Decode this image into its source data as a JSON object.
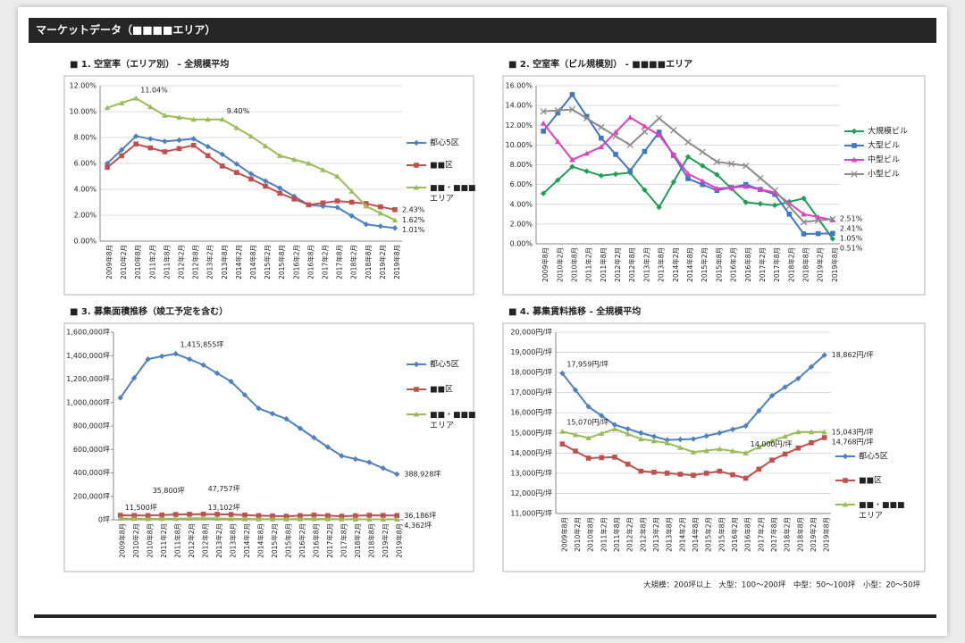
{
  "header": {
    "title": "マーケットデータ（■■■■エリア）"
  },
  "footnote": "大規模：200坪以上　大型：100～200坪　中型：50～100坪　小型：20～50坪",
  "chart_data": [
    {
      "type": "line",
      "title": "■ 1. 空室率（エリア別） - 全規模平均",
      "categories": [
        "2009年8月",
        "2010年2月",
        "2010年8月",
        "2011年2月",
        "2011年8月",
        "2012年2月",
        "2012年8月",
        "2013年2月",
        "2013年8月",
        "2014年2月",
        "2014年8月",
        "2015年2月",
        "2015年8月",
        "2016年2月",
        "2016年8月",
        "2017年2月",
        "2017年8月",
        "2018年2月",
        "2018年8月",
        "2019年2月",
        "2019年8月"
      ],
      "ylim": [
        0,
        12
      ],
      "yticks": [
        {
          "value": 0,
          "label": "0.00%"
        },
        {
          "value": 2,
          "label": "2.00%"
        },
        {
          "value": 4,
          "label": "4.00%"
        },
        {
          "value": 6,
          "label": "6.00%"
        },
        {
          "value": 8,
          "label": "8.00%"
        },
        {
          "value": 10,
          "label": "10.00%"
        },
        {
          "value": 12,
          "label": "12.00%"
        }
      ],
      "grid": true,
      "legend": "right",
      "series": [
        {
          "name": "都心5区",
          "color": "#4f81bd",
          "marker": "diamond",
          "values": [
            6.0,
            7.05,
            8.1,
            7.9,
            7.7,
            7.8,
            7.9,
            7.3,
            6.7,
            5.95,
            5.2,
            4.65,
            4.1,
            3.45,
            2.8,
            2.7,
            2.6,
            1.95,
            1.3,
            1.15,
            1.01
          ],
          "value_labels": [
            null,
            null,
            null,
            null,
            null,
            null,
            null,
            null,
            null,
            null,
            null,
            null,
            null,
            null,
            null,
            null,
            null,
            null,
            null,
            null,
            "1.01%"
          ]
        },
        {
          "name": "■■区",
          "color": "#c0504d",
          "marker": "square",
          "values": [
            5.7,
            6.6,
            7.5,
            7.2,
            6.9,
            7.15,
            7.4,
            6.6,
            5.8,
            5.3,
            4.8,
            4.25,
            3.7,
            3.25,
            2.8,
            2.95,
            3.1,
            3.0,
            2.9,
            2.65,
            2.43
          ],
          "value_labels": [
            null,
            null,
            null,
            null,
            null,
            null,
            null,
            null,
            null,
            null,
            null,
            null,
            null,
            null,
            null,
            null,
            null,
            null,
            null,
            null,
            "2.43%"
          ]
        },
        {
          "name": "■■・■■■エリア",
          "color": "#9bbb59",
          "marker": "triangle",
          "values": [
            10.3,
            10.67,
            11.04,
            10.37,
            9.7,
            9.55,
            9.4,
            9.4,
            9.4,
            8.75,
            8.1,
            7.35,
            6.6,
            6.3,
            6.0,
            5.5,
            5.0,
            3.85,
            2.7,
            2.16,
            1.62
          ],
          "value_labels": [
            null,
            null,
            "11.04%",
            null,
            null,
            null,
            null,
            null,
            "9.40%",
            null,
            null,
            null,
            null,
            null,
            null,
            null,
            null,
            null,
            null,
            null,
            "1.62%"
          ]
        }
      ]
    },
    {
      "type": "line",
      "title": "■ 2. 空室率（ビル規模別） - ■■■■エリア",
      "categories": [
        "2009年8月",
        "2010年2月",
        "2010年8月",
        "2011年2月",
        "2011年8月",
        "2012年2月",
        "2012年8月",
        "2013年2月",
        "2013年8月",
        "2014年2月",
        "2014年8月",
        "2015年2月",
        "2015年8月",
        "2016年2月",
        "2016年8月",
        "2017年2月",
        "2017年8月",
        "2018年2月",
        "2018年8月",
        "2019年2月",
        "2019年8月"
      ],
      "ylim": [
        0,
        16
      ],
      "yticks": [
        {
          "value": 0,
          "label": "0.00%"
        },
        {
          "value": 2,
          "label": "2.00%"
        },
        {
          "value": 4,
          "label": "4.00%"
        },
        {
          "value": 6,
          "label": "6.00%"
        },
        {
          "value": 8,
          "label": "8.00%"
        },
        {
          "value": 10,
          "label": "10.00%"
        },
        {
          "value": 12,
          "label": "12.00%"
        },
        {
          "value": 14,
          "label": "14.00%"
        },
        {
          "value": 16,
          "label": "16.00%"
        }
      ],
      "grid": true,
      "legend": "right",
      "series": [
        {
          "name": "大規模ビル",
          "color": "#1f9e55",
          "marker": "diamond",
          "values": [
            5.1,
            6.45,
            7.8,
            7.35,
            6.9,
            7.05,
            7.2,
            5.45,
            3.7,
            6.25,
            8.8,
            7.9,
            7.0,
            5.6,
            4.2,
            4.05,
            3.9,
            4.25,
            4.6,
            2.56,
            0.51
          ],
          "value_labels": [
            null,
            null,
            null,
            null,
            null,
            null,
            null,
            null,
            null,
            null,
            null,
            null,
            null,
            null,
            null,
            null,
            null,
            null,
            null,
            null,
            "0.51%"
          ]
        },
        {
          "name": "大型ビル",
          "color": "#3f78c0",
          "marker": "square",
          "values": [
            11.4,
            13.25,
            15.1,
            12.9,
            10.7,
            9.05,
            7.4,
            9.35,
            11.3,
            8.95,
            6.6,
            6.0,
            5.4,
            5.7,
            6.0,
            5.5,
            5.0,
            3.0,
            1.0,
            1.03,
            1.05
          ],
          "value_labels": [
            null,
            null,
            null,
            null,
            null,
            null,
            null,
            null,
            null,
            null,
            null,
            null,
            null,
            null,
            null,
            null,
            null,
            null,
            null,
            null,
            "1.05%"
          ]
        },
        {
          "name": "中型ビル",
          "color": "#e040c0",
          "marker": "triangle",
          "values": [
            12.2,
            10.35,
            8.5,
            9.15,
            9.8,
            11.3,
            12.8,
            11.9,
            11.0,
            9.05,
            7.1,
            6.35,
            5.6,
            5.7,
            5.8,
            5.5,
            5.2,
            4.1,
            3.0,
            2.71,
            2.41
          ],
          "value_labels": [
            null,
            null,
            null,
            null,
            null,
            null,
            null,
            null,
            null,
            null,
            null,
            null,
            null,
            null,
            null,
            null,
            null,
            null,
            null,
            null,
            "2.41%"
          ]
        },
        {
          "name": "小型ビル",
          "color": "#8c8c8c",
          "marker": "cross",
          "values": [
            13.4,
            13.5,
            13.6,
            12.7,
            11.8,
            10.9,
            10.0,
            11.35,
            12.7,
            11.5,
            10.3,
            9.3,
            8.3,
            8.1,
            7.9,
            6.65,
            5.4,
            3.8,
            2.2,
            2.36,
            2.51
          ],
          "value_labels": [
            null,
            null,
            null,
            null,
            null,
            null,
            null,
            null,
            null,
            null,
            null,
            null,
            null,
            null,
            null,
            null,
            null,
            null,
            null,
            null,
            "2.51%"
          ]
        }
      ]
    },
    {
      "type": "line",
      "title": "■ 3. 募集面積推移（竣工予定を含む）",
      "categories": [
        "2009年8月",
        "2010年2月",
        "2010年8月",
        "2011年2月",
        "2011年8月",
        "2012年2月",
        "2012年8月",
        "2013年2月",
        "2013年8月",
        "2014年2月",
        "2014年8月",
        "2015年2月",
        "2015年8月",
        "2016年2月",
        "2016年8月",
        "2017年2月",
        "2017年8月",
        "2018年2月",
        "2018年8月",
        "2019年2月",
        "2019年8月"
      ],
      "ylim": [
        0,
        1600000
      ],
      "yticks": [
        {
          "value": 0,
          "label": "0坪"
        },
        {
          "value": 200000,
          "label": "200,000坪"
        },
        {
          "value": 400000,
          "label": "400,000坪"
        },
        {
          "value": 600000,
          "label": "600,000坪"
        },
        {
          "value": 800000,
          "label": "800,000坪"
        },
        {
          "value": 1000000,
          "label": "1,000,000坪"
        },
        {
          "value": 1200000,
          "label": "1,200,000坪"
        },
        {
          "value": 1400000,
          "label": "1,400,000坪"
        },
        {
          "value": 1600000,
          "label": "1,600,000坪"
        }
      ],
      "grid": false,
      "legend": "right",
      "series": [
        {
          "name": "都心5区",
          "color": "#4f81bd",
          "marker": "diamond",
          "values": [
            1040000,
            1210000,
            1370000,
            1395000,
            1415855,
            1370000,
            1320000,
            1250000,
            1180000,
            1065000,
            950000,
            905000,
            860000,
            780000,
            700000,
            620000,
            545000,
            518000,
            490000,
            440000,
            388928
          ],
          "value_labels": [
            null,
            null,
            null,
            null,
            "1,415,855坪",
            null,
            null,
            null,
            null,
            null,
            null,
            null,
            null,
            null,
            null,
            null,
            null,
            null,
            null,
            null,
            "388,928坪"
          ]
        },
        {
          "name": "■■区",
          "color": "#c0504d",
          "marker": "square",
          "values": [
            38000,
            36900,
            35800,
            40400,
            45000,
            46400,
            47757,
            46400,
            45000,
            40000,
            35000,
            32500,
            30000,
            35000,
            40000,
            35000,
            30000,
            34000,
            38000,
            37100,
            36186
          ],
          "value_labels": [
            null,
            null,
            "35,800坪",
            null,
            null,
            null,
            "47,757坪",
            null,
            null,
            null,
            null,
            null,
            null,
            null,
            null,
            null,
            null,
            null,
            null,
            null,
            "36,186坪"
          ]
        },
        {
          "name": "■■・■■■エリア",
          "color": "#9bbb59",
          "marker": "triangle",
          "values": [
            11500,
            9750,
            8000,
            9000,
            10000,
            11550,
            13102,
            11050,
            9000,
            7500,
            6000,
            5500,
            5000,
            6500,
            8000,
            6500,
            5000,
            4500,
            4000,
            4180,
            4362
          ],
          "value_labels": [
            "11,500坪",
            null,
            null,
            null,
            null,
            null,
            "13,102坪",
            null,
            null,
            null,
            null,
            null,
            null,
            null,
            null,
            null,
            null,
            null,
            null,
            null,
            "4,362坪"
          ]
        }
      ]
    },
    {
      "type": "line",
      "title": "■ 4. 募集賃料推移 - 全規模平均",
      "categories": [
        "2009年8月",
        "2010年2月",
        "2010年8月",
        "2011年2月",
        "2011年8月",
        "2012年2月",
        "2012年8月",
        "2013年2月",
        "2013年8月",
        "2014年2月",
        "2014年8月",
        "2015年2月",
        "2015年8月",
        "2016年2月",
        "2016年8月",
        "2017年2月",
        "2017年8月",
        "2018年2月",
        "2018年8月",
        "2019年2月",
        "2019年8月"
      ],
      "ylim": [
        11000,
        20000
      ],
      "yticks": [
        {
          "value": 11000,
          "label": "11,000円/坪"
        },
        {
          "value": 12000,
          "label": "12,000円/坪"
        },
        {
          "value": 13000,
          "label": "13,000円/坪"
        },
        {
          "value": 14000,
          "label": "14,000円/坪"
        },
        {
          "value": 15000,
          "label": "15,000円/坪"
        },
        {
          "value": 16000,
          "label": "16,000円/坪"
        },
        {
          "value": 17000,
          "label": "17,000円/坪"
        },
        {
          "value": 18000,
          "label": "18,000円/坪"
        },
        {
          "value": 19000,
          "label": "19,000円/坪"
        },
        {
          "value": 20000,
          "label": "20,000円/坪"
        }
      ],
      "grid": true,
      "legend": "right",
      "series": [
        {
          "name": "都心5区",
          "color": "#4f81bd",
          "marker": "diamond",
          "values": [
            17959,
            17130,
            16300,
            15850,
            15400,
            15200,
            15000,
            14825,
            14650,
            14675,
            14700,
            14850,
            15000,
            15175,
            15350,
            16100,
            16850,
            17275,
            17700,
            18281,
            18862
          ],
          "value_labels": [
            "17,959円/坪",
            null,
            null,
            null,
            null,
            null,
            null,
            null,
            null,
            null,
            null,
            null,
            null,
            null,
            null,
            null,
            null,
            null,
            null,
            null,
            "18,862円/坪"
          ]
        },
        {
          "name": "■■区",
          "color": "#c0504d",
          "marker": "square",
          "values": [
            14450,
            14100,
            13750,
            13775,
            13800,
            13450,
            13100,
            13050,
            13000,
            12950,
            12900,
            13000,
            13100,
            12925,
            12750,
            13200,
            13650,
            13950,
            14250,
            14509,
            14768
          ],
          "value_labels": [
            null,
            null,
            null,
            null,
            null,
            null,
            null,
            null,
            null,
            null,
            null,
            null,
            null,
            null,
            null,
            null,
            null,
            null,
            null,
            null,
            "14,768円/坪"
          ]
        },
        {
          "name": "■■・■■■エリア",
          "color": "#9bbb59",
          "marker": "triangle",
          "values": [
            15070,
            14910,
            14750,
            14975,
            15200,
            14950,
            14700,
            14600,
            14500,
            14275,
            14050,
            14125,
            14200,
            14100,
            14000,
            14300,
            14600,
            14825,
            15050,
            15047,
            15043
          ],
          "value_labels": [
            "15,070円/坪",
            null,
            null,
            null,
            null,
            null,
            null,
            null,
            null,
            null,
            null,
            null,
            null,
            null,
            "14,000円/坪",
            null,
            null,
            null,
            null,
            null,
            "15,043円/坪"
          ]
        }
      ]
    }
  ]
}
